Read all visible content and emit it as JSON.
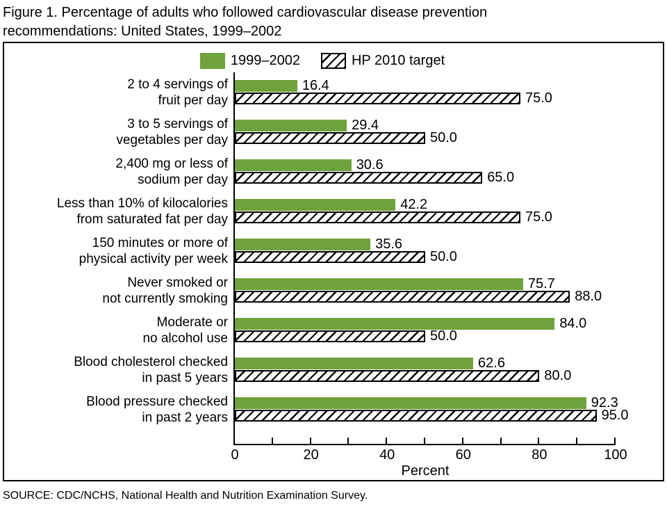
{
  "title": {
    "line1": "Figure 1. Percentage of adults who followed cardiovascular disease prevention",
    "line2": "recommendations: United States, 1999–2002"
  },
  "legend": {
    "items": [
      {
        "label": "1999–2002",
        "swatch": "solid-green"
      },
      {
        "label": "HP 2010 target",
        "swatch": "hatched"
      }
    ]
  },
  "colors": {
    "bar_green": "#6FA23C",
    "hatch_foreground": "#000000",
    "hatch_background": "#FFFFFF",
    "frame_border": "#000000"
  },
  "chart_data": {
    "type": "bar",
    "orientation": "horizontal",
    "title": "Figure 1. Percentage of adults who followed cardiovascular disease prevention recommendations: United States, 1999–2002",
    "categories": [
      [
        "2 to 4 servings of",
        "fruit per day"
      ],
      [
        "3 to 5 servings of",
        "vegetables per day"
      ],
      [
        "2,400 mg or less of",
        "sodium per day"
      ],
      [
        "Less than 10% of kilocalories",
        "from saturated fat per day"
      ],
      [
        "150 minutes or more of",
        "physical activity per week"
      ],
      [
        "Never smoked or",
        "not currently smoking"
      ],
      [
        "Moderate or",
        "no alcohol use"
      ],
      [
        "Blood cholesterol checked",
        "in past 5 years"
      ],
      [
        "Blood pressure checked",
        "in past 2 years"
      ]
    ],
    "series": [
      {
        "name": "1999–2002",
        "style": "solid",
        "values": [
          16.4,
          29.4,
          30.6,
          42.2,
          35.6,
          75.7,
          84.0,
          62.6,
          92.3
        ],
        "value_labels": [
          "16.4",
          "29.4",
          "30.6",
          "42.2",
          "35.6",
          "75.7",
          "84.0",
          "62.6",
          "92.3"
        ]
      },
      {
        "name": "HP 2010 target",
        "style": "hatched",
        "values": [
          75.0,
          50.0,
          65.0,
          75.0,
          50.0,
          88.0,
          50.0,
          80.0,
          95.0
        ],
        "value_labels": [
          "75.0",
          "50.0",
          "65.0",
          "75.0",
          "50.0",
          "88.0",
          "50.0",
          "80.0",
          "95.0"
        ]
      }
    ],
    "xlabel": "Percent",
    "xlim": [
      0,
      100
    ],
    "xticks_labeled": [
      0,
      20,
      40,
      60,
      80,
      100
    ],
    "xtick_interval_minor": 10,
    "legend_position": "top-center",
    "grid": false
  },
  "source": "SOURCE: CDC/NCHS, National Health and Nutrition Examination Survey."
}
